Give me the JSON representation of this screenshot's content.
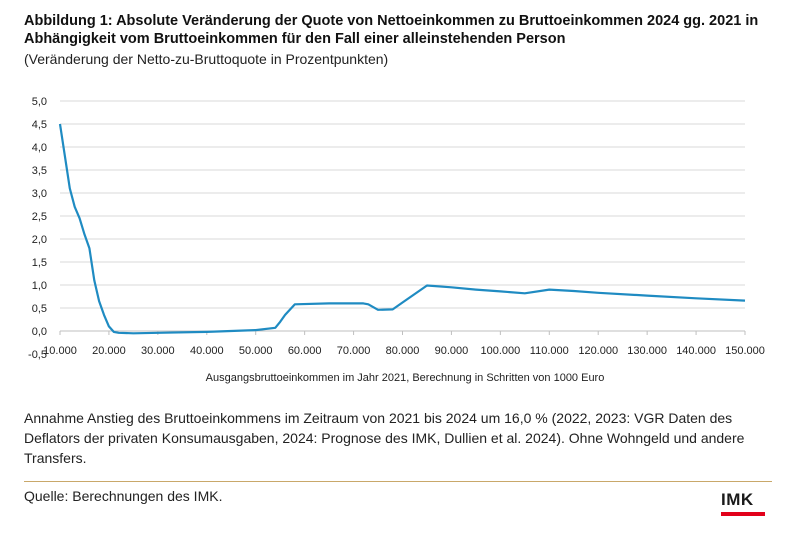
{
  "header": {
    "title": "Abbildung 1: Absolute Veränderung der Quote von Nettoeinkommen zu Bruttoeinkommen 2024 gg. 2021 in Abhängigkeit vom Bruttoeinkommen für den Fall einer alleinstehenden Person",
    "subtitle": "(Veränderung der Netto-zu-Bruttoquote in Prozentpunkten)"
  },
  "chart_data": {
    "type": "line",
    "title": "",
    "xlabel": "Ausgangsbruttoeinkommen im Jahr 2021, Berechnung in Schritten von 1000 Euro",
    "ylabel": "",
    "xlim": [
      10000,
      150000
    ],
    "ylim": [
      -0.5,
      5.0
    ],
    "y_ticks": [
      "-0,5",
      "0,0",
      "0,5",
      "1,0",
      "1,5",
      "2,0",
      "2,5",
      "3,0",
      "3,5",
      "4,0",
      "4,5",
      "5,0"
    ],
    "x_ticks": [
      "10.000",
      "20.000",
      "30.000",
      "40.000",
      "50.000",
      "60.000",
      "70.000",
      "80.000",
      "90.000",
      "100.000",
      "110.000",
      "120.000",
      "130.000",
      "140.000",
      "150.000"
    ],
    "grid": "horizontal",
    "color": "#1f8bc2",
    "series": [
      {
        "x": [
          10000,
          11000,
          12000,
          13000,
          14000,
          15000,
          16000,
          17000,
          18000,
          19000,
          20000,
          21000,
          22000,
          25000,
          30000,
          40000,
          50000,
          54000,
          55000,
          56000,
          58000,
          65000,
          72000,
          73000,
          75000,
          78000,
          80000,
          85000,
          90000,
          95000,
          100000,
          105000,
          110000,
          115000,
          120000,
          130000,
          140000,
          150000
        ],
        "y": [
          4.5,
          3.8,
          3.1,
          2.7,
          2.45,
          2.1,
          1.8,
          1.1,
          0.65,
          0.35,
          0.1,
          -0.02,
          -0.04,
          -0.05,
          -0.04,
          -0.02,
          0.02,
          0.07,
          0.2,
          0.35,
          0.58,
          0.6,
          0.6,
          0.58,
          0.46,
          0.47,
          0.62,
          0.99,
          0.95,
          0.9,
          0.86,
          0.82,
          0.9,
          0.87,
          0.83,
          0.77,
          0.71,
          0.66
        ]
      }
    ]
  },
  "note": "Annahme Anstieg des Bruttoeinkommens im Zeitraum von 2021 bis 2024 um 16,0 % (2022, 2023: VGR Daten des Deflators der privaten Konsumausgaben, 2024: Prognose des IMK, Dullien et al. 2024). Ohne Wohngeld und andere Transfers.",
  "source": "Quelle: Berechnungen des IMK.",
  "logo": {
    "text": "IMK",
    "accent": "#e2001a"
  }
}
